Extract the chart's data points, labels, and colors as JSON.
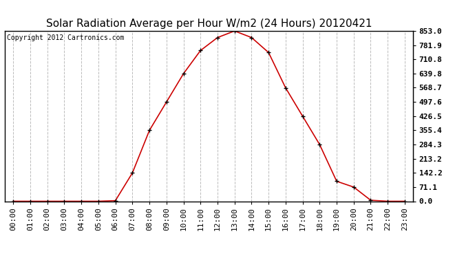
{
  "title": "Solar Radiation Average per Hour W/m2 (24 Hours) 20120421",
  "copyright": "Copyright 2012 Cartronics.com",
  "hours": [
    "00:00",
    "01:00",
    "02:00",
    "03:00",
    "04:00",
    "05:00",
    "06:00",
    "07:00",
    "08:00",
    "09:00",
    "10:00",
    "11:00",
    "12:00",
    "13:00",
    "14:00",
    "15:00",
    "16:00",
    "17:00",
    "18:00",
    "19:00",
    "20:00",
    "21:00",
    "22:00",
    "23:00"
  ],
  "values": [
    0.0,
    0.0,
    0.0,
    0.0,
    0.0,
    0.0,
    3.0,
    142.0,
    355.0,
    497.0,
    639.0,
    755.0,
    820.0,
    853.0,
    820.0,
    745.0,
    568.0,
    426.0,
    284.0,
    100.0,
    71.0,
    5.0,
    0.0,
    0.0
  ],
  "line_color": "#cc0000",
  "marker": "+",
  "marker_color": "#000000",
  "background_color": "#ffffff",
  "plot_bg_color": "#ffffff",
  "grid_color": "#bbbbbb",
  "grid_style": "--",
  "yticks": [
    0.0,
    71.1,
    142.2,
    213.2,
    284.3,
    355.4,
    426.5,
    497.6,
    568.7,
    639.8,
    710.8,
    781.9,
    853.0
  ],
  "ylim": [
    0,
    853.0
  ],
  "title_fontsize": 11,
  "copyright_fontsize": 7,
  "tick_fontsize": 8
}
